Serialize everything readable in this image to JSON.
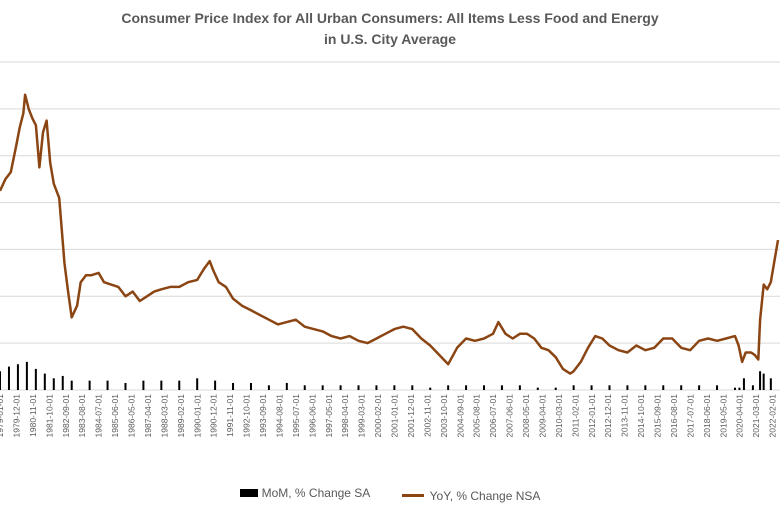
{
  "chart_data": {
    "type": "line",
    "title": "Consumer Price Index for All Urban Consumers: All Items Less Food and Energy",
    "title_line1": "Consumer Price Index for All Urban Consumers: All Items Less Food and Energy",
    "title_line2": "in U.S. City Average",
    "xlabel": "",
    "ylabel": "",
    "ylim": [
      0,
      14
    ],
    "gridlines": true,
    "legend_position": "bottom",
    "x_tick_labels": [
      "1979-01-01",
      "1979-12-01",
      "1980-11-01",
      "1981-10-01",
      "1982-09-01",
      "1983-08-01",
      "1984-07-01",
      "1985-06-01",
      "1986-05-01",
      "1987-04-01",
      "1988-03-01",
      "1989-02-01",
      "1990-01-01",
      "1990-12-01",
      "1991-11-01",
      "1992-10-01",
      "1993-09-01",
      "1994-08-01",
      "1995-07-01",
      "1996-06-01",
      "1997-05-01",
      "1998-04-01",
      "1999-03-01",
      "2000-02-01",
      "2001-01-01",
      "2001-12-01",
      "2002-11-01",
      "2003-10-01",
      "2004-09-01",
      "2005-08-01",
      "2006-07-01",
      "2007-06-01",
      "2008-05-01",
      "2009-04-01",
      "2010-03-01",
      "2011-02-01",
      "2012-01-01",
      "2012-12-01",
      "2013-11-01",
      "2014-10-01",
      "2015-09-01",
      "2016-08-01",
      "2017-07-01",
      "2018-06-01",
      "2019-05-01",
      "2020-04-01",
      "2021-03-01",
      "2022-02-01"
    ],
    "series": [
      {
        "name": "MoM, % Change SA",
        "type": "bar",
        "color": "#000000",
        "x": [
          1979.0,
          1979.5,
          1980.0,
          1980.5,
          1981.0,
          1981.5,
          1982.0,
          1982.5,
          1983.0,
          1984.0,
          1985.0,
          1986.0,
          1987.0,
          1988.0,
          1989.0,
          1990.0,
          1991.0,
          1992.0,
          1993.0,
          1994.0,
          1995.0,
          1996.0,
          1997.0,
          1998.0,
          1999.0,
          2000.0,
          2001.0,
          2002.0,
          2003.0,
          2004.0,
          2005.0,
          2006.0,
          2007.0,
          2008.0,
          2009.0,
          2010.0,
          2011.0,
          2012.0,
          2013.0,
          2014.0,
          2015.0,
          2016.0,
          2017.0,
          2018.0,
          2019.0,
          2020.0,
          2020.25,
          2020.5,
          2021.0,
          2021.4,
          2021.6,
          2022.0
        ],
        "values": [
          0.8,
          1.0,
          1.1,
          1.2,
          0.9,
          0.7,
          0.5,
          0.6,
          0.4,
          0.4,
          0.4,
          0.3,
          0.4,
          0.4,
          0.4,
          0.5,
          0.4,
          0.3,
          0.3,
          0.2,
          0.3,
          0.2,
          0.2,
          0.2,
          0.2,
          0.2,
          0.2,
          0.2,
          0.1,
          0.2,
          0.2,
          0.2,
          0.2,
          0.2,
          0.1,
          0.1,
          0.2,
          0.2,
          0.2,
          0.2,
          0.2,
          0.2,
          0.2,
          0.2,
          0.2,
          0.1,
          0.1,
          0.5,
          0.2,
          0.8,
          0.7,
          0.5
        ]
      },
      {
        "name": "YoY, % Change NSA",
        "type": "line",
        "color": "#8B4513",
        "x": [
          1979.0,
          1979.3,
          1979.6,
          1979.9,
          1980.1,
          1980.3,
          1980.4,
          1980.6,
          1980.8,
          1981.0,
          1981.2,
          1981.4,
          1981.6,
          1981.8,
          1982.0,
          1982.3,
          1982.6,
          1982.8,
          1983.0,
          1983.3,
          1983.5,
          1983.8,
          1984.1,
          1984.5,
          1984.8,
          1985.2,
          1985.6,
          1986.0,
          1986.4,
          1986.8,
          1987.2,
          1987.6,
          1988.0,
          1988.5,
          1989.0,
          1989.5,
          1990.0,
          1990.4,
          1990.7,
          1990.9,
          1991.2,
          1991.6,
          1992.0,
          1992.5,
          1993.0,
          1993.5,
          1994.0,
          1994.5,
          1995.0,
          1995.5,
          1996.0,
          1996.5,
          1997.0,
          1997.5,
          1998.0,
          1998.5,
          1999.0,
          1999.5,
          2000.0,
          2000.5,
          2001.0,
          2001.5,
          2002.0,
          2002.5,
          2003.0,
          2003.5,
          2004.0,
          2004.5,
          2005.0,
          2005.5,
          2006.0,
          2006.5,
          2006.8,
          2007.2,
          2007.6,
          2008.0,
          2008.4,
          2008.8,
          2009.2,
          2009.6,
          2010.0,
          2010.4,
          2010.8,
          2011.0,
          2011.4,
          2011.8,
          2012.2,
          2012.6,
          2013.0,
          2013.5,
          2014.0,
          2014.5,
          2015.0,
          2015.5,
          2016.0,
          2016.5,
          2017.0,
          2017.5,
          2018.0,
          2018.5,
          2019.0,
          2019.5,
          2020.0,
          2020.2,
          2020.4,
          2020.6,
          2020.9,
          2021.1,
          2021.3,
          2021.4,
          2021.6,
          2021.8,
          2022.0,
          2022.2,
          2022.4
        ],
        "values": [
          8.5,
          9.0,
          9.3,
          10.4,
          11.2,
          11.8,
          12.6,
          12.0,
          11.6,
          11.3,
          9.5,
          11.0,
          11.5,
          9.7,
          8.8,
          8.2,
          5.4,
          4.2,
          3.1,
          3.6,
          4.6,
          4.9,
          4.9,
          5.0,
          4.6,
          4.5,
          4.4,
          4.0,
          4.2,
          3.8,
          4.0,
          4.2,
          4.3,
          4.4,
          4.4,
          4.6,
          4.7,
          5.2,
          5.5,
          5.1,
          4.6,
          4.4,
          3.9,
          3.6,
          3.4,
          3.2,
          3.0,
          2.8,
          2.9,
          3.0,
          2.7,
          2.6,
          2.5,
          2.3,
          2.2,
          2.3,
          2.1,
          2.0,
          2.2,
          2.4,
          2.6,
          2.7,
          2.6,
          2.2,
          1.9,
          1.5,
          1.1,
          1.8,
          2.2,
          2.1,
          2.2,
          2.4,
          2.9,
          2.4,
          2.2,
          2.4,
          2.4,
          2.2,
          1.8,
          1.7,
          1.4,
          0.9,
          0.7,
          0.8,
          1.2,
          1.8,
          2.3,
          2.2,
          1.9,
          1.7,
          1.6,
          1.9,
          1.7,
          1.8,
          2.2,
          2.2,
          1.8,
          1.7,
          2.1,
          2.2,
          2.1,
          2.2,
          2.3,
          1.9,
          1.2,
          1.6,
          1.6,
          1.5,
          1.3,
          3.0,
          4.5,
          4.3,
          4.6,
          5.5,
          6.4
        ]
      }
    ]
  },
  "legend": {
    "mom_label": "MoM, % Change SA",
    "yoy_label": "YoY, % Change NSA"
  }
}
